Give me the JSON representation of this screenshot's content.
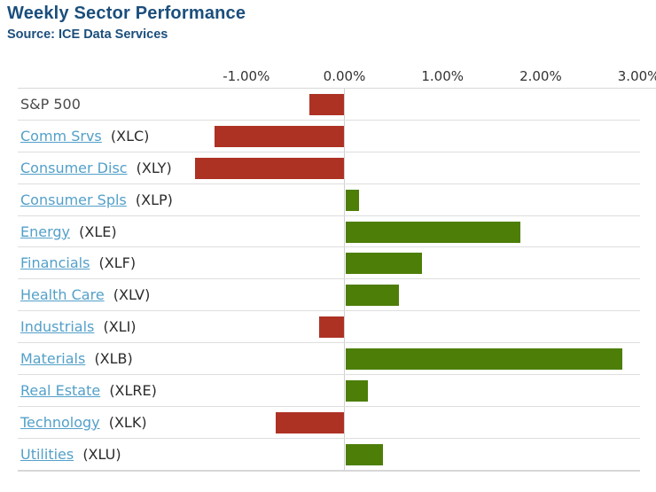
{
  "header": {
    "title": "Weekly Sector Performance",
    "source": "Source: ICE Data Services"
  },
  "colors": {
    "title": "#1b4e7c",
    "link": "#53a0c9",
    "positive": "#4d7e08",
    "negative": "#ad3224",
    "axis_text": "#333333",
    "gridline": "#d9d9d9"
  },
  "chart_data": {
    "type": "bar",
    "orientation": "horizontal",
    "title": "Weekly Sector Performance",
    "subtitle": "Source: ICE Data Services",
    "unit": "percent",
    "xlim": [
      -3.3,
      3.2
    ],
    "x_ticks": [
      "-1.00%",
      "0.00%",
      "1.00%",
      "2.00%",
      "3.00%"
    ],
    "x_tick_values": [
      -1,
      0,
      1,
      2,
      3
    ],
    "grid": "zero-line-only",
    "legend": "none",
    "rows": [
      {
        "label": "S&P 500",
        "ticker": "",
        "value": -0.36,
        "link": false
      },
      {
        "label": "Comm Srvs",
        "ticker": "(XLC)",
        "value": -1.32,
        "link": true
      },
      {
        "label": "Consumer Disc",
        "ticker": "(XLY)",
        "value": -1.52,
        "link": true
      },
      {
        "label": "Consumer Spls",
        "ticker": "(XLP)",
        "value": 0.14,
        "link": true
      },
      {
        "label": "Energy",
        "ticker": "(XLE)",
        "value": 1.78,
        "link": true
      },
      {
        "label": "Financials",
        "ticker": "(XLF)",
        "value": 0.78,
        "link": true
      },
      {
        "label": "Health Care",
        "ticker": "(XLV)",
        "value": 0.55,
        "link": true
      },
      {
        "label": "Industrials",
        "ticker": "(XLI)",
        "value": -0.26,
        "link": true
      },
      {
        "label": "Materials",
        "ticker": "(XLB)",
        "value": 2.82,
        "link": true
      },
      {
        "label": "Real Estate",
        "ticker": "(XLRE)",
        "value": 0.23,
        "link": true
      },
      {
        "label": "Technology",
        "ticker": "(XLK)",
        "value": -0.7,
        "link": true
      },
      {
        "label": "Utilities",
        "ticker": "(XLU)",
        "value": 0.38,
        "link": true
      }
    ]
  }
}
